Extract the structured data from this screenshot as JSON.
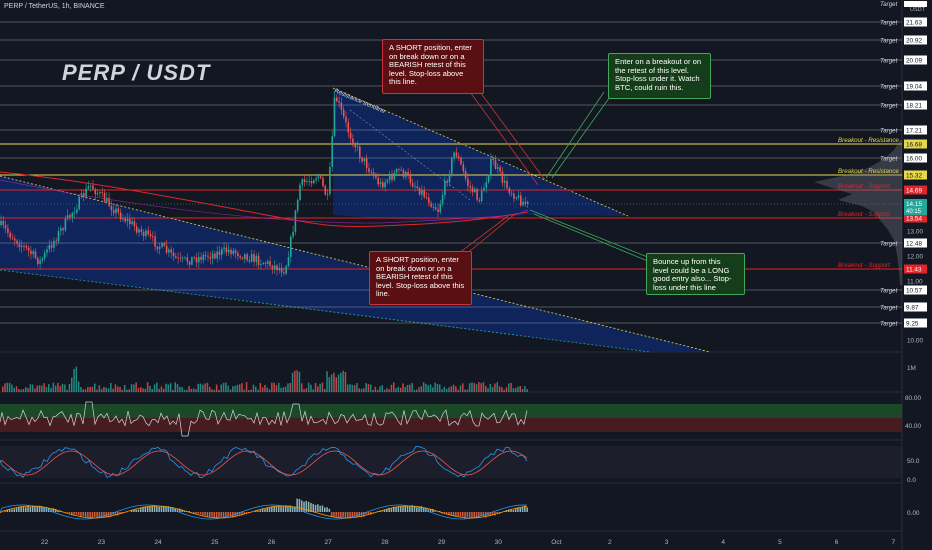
{
  "header": {
    "symbol_line": "PERP / TetherUS, 1h, BINANCE",
    "big_title": "PERP / USDT"
  },
  "annotations": {
    "short_top": "A SHORT position, enter on break down or on a BEARISH retest of this level. Stop-loss above this line.",
    "short_bottom": "A SHORT position, enter on break down or on a BEARISH retest of this level. Stop-loss above this line.",
    "long_breakout": "Enter on a breakout or on the retest of this level. Stop-loss under it. Watch BTC, could ruin this.",
    "long_bounce": "Bounce up from this level could be a LONG good entry also... Stop-loss under this line",
    "trendline_label": "Resistance trendline"
  },
  "colors": {
    "background": "#131722",
    "up": "#26a69a",
    "down": "#ef5350",
    "yellow": "#e6d84a",
    "red_line": "#e0262b",
    "channel_fill": "#0d2a6e"
  },
  "chart_data": [
    {
      "type": "candlestick",
      "pane": "price",
      "x_ticks": [
        "22",
        "23",
        "24",
        "25",
        "26",
        "27",
        "28",
        "29",
        "30",
        "Oct",
        "2",
        "3",
        "4",
        "5",
        "6",
        "7"
      ],
      "y_ticks": [
        "13.00",
        "12.00",
        "11.00",
        "10.00"
      ],
      "current_price": "14.15",
      "countdown": "40:15",
      "usdt_label": "USDT",
      "target_label": "Target",
      "targets": [
        {
          "label": "Target",
          "value": "21.63"
        },
        {
          "label": "Target",
          "value": "20.92"
        },
        {
          "label": "Target",
          "value": "20.09"
        },
        {
          "label": "Target",
          "value": "19.04"
        },
        {
          "label": "Target",
          "value": "18.21"
        },
        {
          "label": "Target",
          "value": "17.21"
        },
        {
          "label": "Target",
          "value": "16.00"
        },
        {
          "label": "Target",
          "value": "12.48"
        },
        {
          "label": "Target",
          "value": "10.57"
        },
        {
          "label": "Target",
          "value": "9.87"
        },
        {
          "label": "Target",
          "value": "9.25"
        }
      ],
      "levels": [
        {
          "label": "Breakout - Resistance",
          "value": "16.68",
          "color": "#e6d84a"
        },
        {
          "label": "Breakout - Resistance",
          "value": "15.32",
          "color": "#e6d84a"
        },
        {
          "label": "Breakout - Support",
          "value": "14.69",
          "color": "#e0262b"
        },
        {
          "label": "Breakout - Support",
          "value": "13.54",
          "color": "#e0262b"
        },
        {
          "label": "Breakout - Support",
          "value": "11.43",
          "color": "#e0262b"
        }
      ]
    },
    {
      "type": "bar",
      "pane": "volume",
      "y_ticks": [
        "1M"
      ]
    },
    {
      "type": "line",
      "pane": "rsi",
      "y_ticks": [
        "80.00",
        "40.00"
      ]
    },
    {
      "type": "line",
      "pane": "stochastic",
      "y_ticks": [
        "50.0",
        "0.0"
      ]
    },
    {
      "type": "bar",
      "pane": "macd",
      "y_ticks": [
        "0.00"
      ]
    }
  ]
}
